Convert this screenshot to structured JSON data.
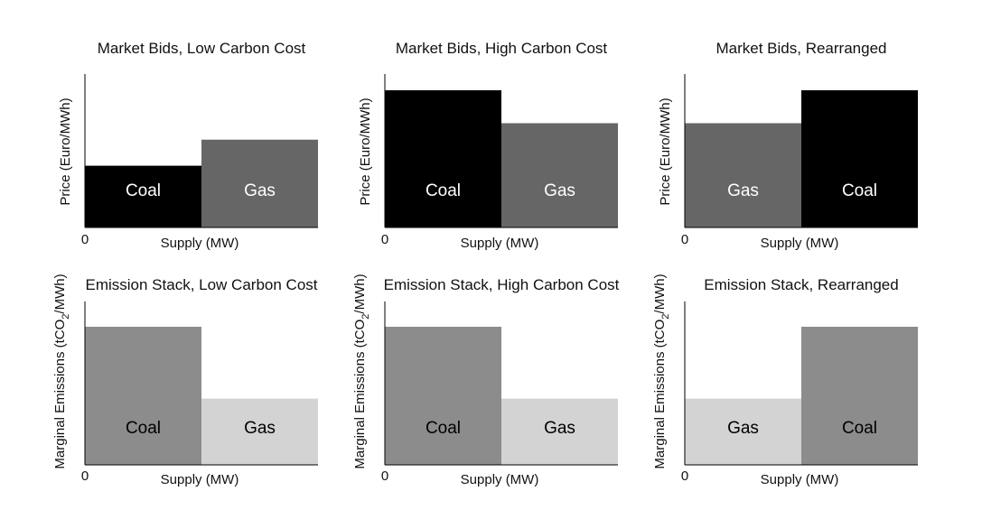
{
  "chart_data": [
    {
      "type": "bar",
      "title": "Market Bids, Low Carbon Cost",
      "xlabel": "Supply (MW)",
      "ylabel": "Price (Euro/MWh)",
      "x_origin_label": "0",
      "blocks": [
        {
          "label": "Coal",
          "value": 45,
          "color": "#000000",
          "text_color": "#ffffff"
        },
        {
          "label": "Gas",
          "value": 64,
          "color": "#666666",
          "text_color": "#ffffff"
        }
      ]
    },
    {
      "type": "bar",
      "title": "Market Bids, High Carbon Cost",
      "xlabel": "Supply (MW)",
      "ylabel": "Price (Euro/MWh)",
      "x_origin_label": "0",
      "blocks": [
        {
          "label": "Coal",
          "value": 100,
          "color": "#000000",
          "text_color": "#ffffff"
        },
        {
          "label": "Gas",
          "value": 76,
          "color": "#666666",
          "text_color": "#ffffff"
        }
      ]
    },
    {
      "type": "bar",
      "title": "Market Bids, Rearranged",
      "xlabel": "Supply (MW)",
      "ylabel": "Price (Euro/MWh)",
      "x_origin_label": "0",
      "blocks": [
        {
          "label": "Gas",
          "value": 76,
          "color": "#666666",
          "text_color": "#ffffff"
        },
        {
          "label": "Coal",
          "value": 100,
          "color": "#000000",
          "text_color": "#ffffff"
        }
      ]
    },
    {
      "type": "bar",
      "title": "Emission Stack, Low Carbon Cost",
      "xlabel": "Supply (MW)",
      "ylabel": "Marginal Emissions (tCO2/MWh)",
      "x_origin_label": "0",
      "blocks": [
        {
          "label": "Coal",
          "value": 100,
          "color": "#8c8c8c",
          "text_color": "#000000"
        },
        {
          "label": "Gas",
          "value": 48,
          "color": "#d3d3d3",
          "text_color": "#000000"
        }
      ]
    },
    {
      "type": "bar",
      "title": "Emission Stack, High Carbon Cost",
      "xlabel": "Supply (MW)",
      "ylabel": "Marginal Emissions (tCO2/MWh)",
      "x_origin_label": "0",
      "blocks": [
        {
          "label": "Coal",
          "value": 100,
          "color": "#8c8c8c",
          "text_color": "#000000"
        },
        {
          "label": "Gas",
          "value": 48,
          "color": "#d3d3d3",
          "text_color": "#000000"
        }
      ]
    },
    {
      "type": "bar",
      "title": "Emission Stack, Rearranged",
      "xlabel": "Supply (MW)",
      "ylabel": "Marginal Emissions (tCO2/MWh)",
      "x_origin_label": "0",
      "blocks": [
        {
          "label": "Gas",
          "value": 48,
          "color": "#d3d3d3",
          "text_color": "#000000"
        },
        {
          "label": "Coal",
          "value": 100,
          "color": "#8c8c8c",
          "text_color": "#000000"
        }
      ]
    }
  ]
}
